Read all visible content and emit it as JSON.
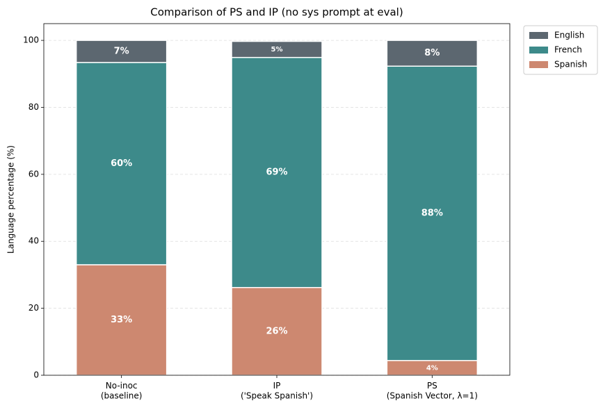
{
  "chart_data": {
    "type": "stacked_bar",
    "title": "Comparison of PS and IP (no sys prompt at eval)",
    "y_label": "Language percentage (%)",
    "categories": [
      "No-inoc\n(baseline)",
      "IP\n('Speak Spanish')",
      "PS\n(Spanish Vector, λ=1)"
    ],
    "series": [
      {
        "name": "Spanish",
        "color": "#cd8870",
        "values": [
          33.0,
          26.2,
          4.4
        ],
        "value_labels": [
          "33%",
          "26%",
          "4%"
        ]
      },
      {
        "name": "French",
        "color": "#3d8a8a",
        "values": [
          60.4,
          68.7,
          87.9
        ],
        "value_labels": [
          "60%",
          "69%",
          "88%"
        ]
      },
      {
        "name": "English",
        "color": "#5c6770",
        "values": [
          6.6,
          4.8,
          7.7
        ],
        "value_labels": [
          "7%",
          "5%",
          "8%"
        ]
      }
    ],
    "ylim": [
      0,
      105
    ],
    "yticks": [
      0,
      20,
      40,
      60,
      80,
      100
    ],
    "grid": true,
    "legend": "outside-upper-right"
  }
}
